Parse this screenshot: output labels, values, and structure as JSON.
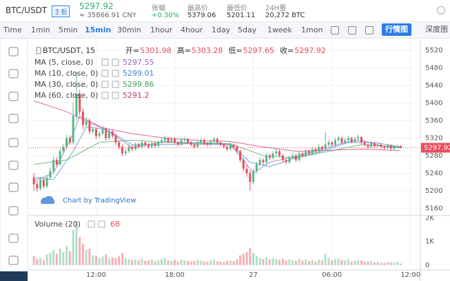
{
  "header": {
    "symbol": "BTC/USDT",
    "board": "主板",
    "price": "5297.92",
    "cny": "≈ 35866.91 CNY",
    "stats": [
      {
        "label": "张幅",
        "value": "+0.30%"
      },
      {
        "label": "最高价",
        "value": "5379.06"
      },
      {
        "label": "最低价",
        "value": "5201.11"
      },
      {
        "label": "24H量",
        "value": "20,272 BTC"
      }
    ]
  },
  "toolbar": {
    "intervals": [
      "Time",
      "1min",
      "5min",
      "15min",
      "30min",
      "1hour",
      "4hour",
      "1day",
      "5day",
      "1week",
      "1mon"
    ],
    "active": "15min",
    "views": [
      "行情图",
      "深度图"
    ]
  },
  "chart_data": {
    "type": "candlestick",
    "legend_title": "BTC/USDT, 15",
    "ohlc_labels": [
      "开=",
      "高=",
      "低=",
      "收="
    ],
    "watermark": "Chart by TradingView",
    "up_color": "#53b987",
    "down_color": "#eb4d5c",
    "candles": [
      [
        5230,
        5240,
        5200,
        5215
      ],
      [
        5215,
        5222,
        5198,
        5205
      ],
      [
        5205,
        5232,
        5200,
        5225
      ],
      [
        5225,
        5230,
        5205,
        5210
      ],
      [
        5210,
        5236,
        5206,
        5230
      ],
      [
        5230,
        5252,
        5225,
        5245
      ],
      [
        5245,
        5278,
        5240,
        5270
      ],
      [
        5270,
        5276,
        5255,
        5260
      ],
      [
        5260,
        5296,
        5256,
        5290
      ],
      [
        5290,
        5306,
        5284,
        5300
      ],
      [
        5300,
        5328,
        5295,
        5320
      ],
      [
        5320,
        5326,
        5304,
        5310
      ],
      [
        5310,
        5400,
        5305,
        5370
      ],
      [
        5370,
        5470,
        5360,
        5420
      ],
      [
        5420,
        5430,
        5372,
        5380
      ],
      [
        5380,
        5388,
        5340,
        5350
      ],
      [
        5350,
        5368,
        5344,
        5360
      ],
      [
        5360,
        5365,
        5328,
        5335
      ],
      [
        5335,
        5346,
        5330,
        5340
      ],
      [
        5340,
        5344,
        5318,
        5325
      ],
      [
        5325,
        5336,
        5320,
        5330
      ],
      [
        5330,
        5348,
        5326,
        5340
      ],
      [
        5340,
        5344,
        5314,
        5320
      ],
      [
        5320,
        5340,
        5316,
        5335
      ],
      [
        5335,
        5338,
        5320,
        5325
      ],
      [
        5325,
        5330,
        5304,
        5310
      ],
      [
        5310,
        5315,
        5294,
        5300
      ],
      [
        5300,
        5305,
        5278,
        5285
      ],
      [
        5285,
        5296,
        5280,
        5290
      ],
      [
        5290,
        5306,
        5286,
        5300
      ],
      [
        5300,
        5304,
        5290,
        5295
      ],
      [
        5295,
        5310,
        5291,
        5305
      ],
      [
        5305,
        5309,
        5296,
        5300
      ],
      [
        5300,
        5315,
        5297,
        5310
      ],
      [
        5310,
        5313,
        5300,
        5305
      ],
      [
        5305,
        5309,
        5296,
        5300
      ],
      [
        5300,
        5313,
        5297,
        5308
      ],
      [
        5308,
        5311,
        5298,
        5302
      ],
      [
        5302,
        5315,
        5299,
        5310
      ],
      [
        5310,
        5320,
        5306,
        5315
      ],
      [
        5315,
        5326,
        5311,
        5320
      ],
      [
        5320,
        5323,
        5308,
        5312
      ],
      [
        5312,
        5322,
        5309,
        5318
      ],
      [
        5318,
        5321,
        5306,
        5310
      ],
      [
        5310,
        5314,
        5301,
        5305
      ],
      [
        5305,
        5320,
        5302,
        5315
      ],
      [
        5315,
        5322,
        5311,
        5318
      ],
      [
        5318,
        5320,
        5306,
        5310
      ],
      [
        5310,
        5313,
        5301,
        5305
      ],
      [
        5305,
        5308,
        5296,
        5300
      ],
      [
        5300,
        5314,
        5297,
        5310
      ],
      [
        5310,
        5319,
        5306,
        5315
      ],
      [
        5315,
        5318,
        5304,
        5308
      ],
      [
        5308,
        5311,
        5301,
        5305
      ],
      [
        5305,
        5316,
        5302,
        5312
      ],
      [
        5312,
        5322,
        5309,
        5318
      ],
      [
        5318,
        5321,
        5306,
        5310
      ],
      [
        5310,
        5313,
        5301,
        5305
      ],
      [
        5305,
        5308,
        5296,
        5300
      ],
      [
        5300,
        5304,
        5290,
        5295
      ],
      [
        5295,
        5310,
        5291,
        5305
      ],
      [
        5305,
        5308,
        5296,
        5300
      ],
      [
        5300,
        5304,
        5285,
        5290
      ],
      [
        5290,
        5294,
        5265,
        5270
      ],
      [
        5270,
        5275,
        5244,
        5250
      ],
      [
        5250,
        5258,
        5232,
        5240
      ],
      [
        5240,
        5246,
        5200,
        5220
      ],
      [
        5220,
        5250,
        5215,
        5245
      ],
      [
        5245,
        5266,
        5240,
        5260
      ],
      [
        5260,
        5276,
        5255,
        5270
      ],
      [
        5270,
        5274,
        5258,
        5265
      ],
      [
        5265,
        5286,
        5261,
        5280
      ],
      [
        5280,
        5284,
        5270,
        5275
      ],
      [
        5275,
        5290,
        5271,
        5285
      ],
      [
        5285,
        5296,
        5281,
        5290
      ],
      [
        5290,
        5294,
        5276,
        5280
      ],
      [
        5280,
        5284,
        5265,
        5270
      ],
      [
        5270,
        5274,
        5260,
        5265
      ],
      [
        5265,
        5280,
        5261,
        5275
      ],
      [
        5275,
        5286,
        5271,
        5280
      ],
      [
        5280,
        5284,
        5266,
        5270
      ],
      [
        5270,
        5290,
        5266,
        5285
      ],
      [
        5285,
        5288,
        5276,
        5280
      ],
      [
        5280,
        5295,
        5276,
        5290
      ],
      [
        5290,
        5293,
        5281,
        5285
      ],
      [
        5285,
        5300,
        5281,
        5295
      ],
      [
        5295,
        5298,
        5286,
        5290
      ],
      [
        5290,
        5306,
        5286,
        5300
      ],
      [
        5300,
        5303,
        5291,
        5295
      ],
      [
        5295,
        5334,
        5291,
        5305
      ],
      [
        5305,
        5316,
        5301,
        5310
      ],
      [
        5310,
        5313,
        5300,
        5305
      ],
      [
        5305,
        5320,
        5301,
        5315
      ],
      [
        5315,
        5326,
        5311,
        5320
      ],
      [
        5320,
        5323,
        5306,
        5310
      ],
      [
        5310,
        5320,
        5306,
        5315
      ],
      [
        5315,
        5324,
        5311,
        5320
      ],
      [
        5320,
        5323,
        5308,
        5312
      ],
      [
        5312,
        5322,
        5309,
        5318
      ],
      [
        5318,
        5328,
        5314,
        5322
      ],
      [
        5322,
        5325,
        5306,
        5310
      ],
      [
        5310,
        5313,
        5301,
        5305
      ],
      [
        5305,
        5308,
        5296,
        5300
      ],
      [
        5300,
        5312,
        5297,
        5308
      ],
      [
        5308,
        5311,
        5298,
        5302
      ],
      [
        5302,
        5309,
        5299,
        5305
      ],
      [
        5305,
        5308,
        5296,
        5300
      ],
      [
        5300,
        5303,
        5294,
        5298
      ],
      [
        5298,
        5307,
        5295,
        5303
      ],
      [
        5303,
        5306,
        5292,
        5296
      ],
      [
        5296,
        5304,
        5293,
        5300
      ],
      [
        5300,
        5305,
        5297,
        5301.98
      ],
      [
        5301.98,
        5303.28,
        5297.65,
        5297.92
      ]
    ],
    "series": [
      {
        "name": "MA (5, close, 0)",
        "color": "#9a5fc7",
        "x": [
          0,
          6,
          12,
          14,
          18,
          24,
          30,
          40,
          50,
          60,
          64,
          67,
          72,
          80,
          88,
          95,
          100,
          106,
          112
        ],
        "values": [
          5222,
          5240,
          5330,
          5370,
          5355,
          5330,
          5298,
          5312,
          5306,
          5305,
          5270,
          5240,
          5265,
          5278,
          5295,
          5310,
          5315,
          5302,
          5297.55
        ]
      },
      {
        "name": "MA (10, close, 0)",
        "color": "#3d85d6",
        "x": [
          0,
          6,
          12,
          16,
          22,
          30,
          40,
          50,
          60,
          66,
          72,
          80,
          88,
          96,
          104,
          112
        ],
        "values": [
          5230,
          5225,
          5290,
          5345,
          5340,
          5305,
          5305,
          5308,
          5306,
          5265,
          5255,
          5275,
          5290,
          5310,
          5310,
          5299.01
        ]
      },
      {
        "name": "MA (30, close, 0)",
        "color": "#3fa65a",
        "x": [
          0,
          10,
          20,
          30,
          40,
          50,
          60,
          70,
          80,
          90,
          100,
          112
        ],
        "values": [
          5260,
          5270,
          5310,
          5315,
          5310,
          5310,
          5307,
          5280,
          5275,
          5290,
          5305,
          5299.86
        ]
      },
      {
        "name": "MA (60, close, 0)",
        "color": "#c2367f",
        "x": [
          0,
          10,
          20,
          30,
          40,
          50,
          60,
          70,
          80,
          90,
          100,
          112
        ],
        "values": [
          5405,
          5380,
          5345,
          5330,
          5320,
          5315,
          5312,
          5300,
          5290,
          5292,
          5295,
          5291.2
        ]
      }
    ],
    "ylim": [
      5145,
      5545
    ],
    "yticks": [
      5160,
      5200,
      5240,
      5280,
      5320,
      5360,
      5400,
      5440,
      5480,
      5520
    ],
    "xlim": [
      -1.5,
      118
    ],
    "xticks": [
      {
        "value": 19,
        "label": "12:00"
      },
      {
        "value": 43,
        "label": "18:00"
      },
      {
        "value": 67,
        "label": "27"
      },
      {
        "value": 91,
        "label": "06:00"
      },
      {
        "value": 115,
        "label": "12:00"
      }
    ],
    "volume_title": "Volume (20)",
    "volumes": [
      380,
      260,
      310,
      220,
      450,
      520,
      640,
      480,
      700,
      560,
      820,
      600,
      1500,
      1850,
      1200,
      900,
      650,
      700,
      420,
      380,
      300,
      360,
      450,
      280,
      330,
      300,
      380,
      520,
      300,
      260,
      220,
      240,
      200,
      260,
      180,
      200,
      240,
      160,
      220,
      280,
      300,
      200,
      180,
      220,
      160,
      240,
      200,
      180,
      150,
      170,
      220,
      180,
      160,
      140,
      200,
      240,
      160,
      150,
      130,
      180,
      200,
      160,
      240,
      420,
      480,
      560,
      720,
      520,
      380,
      300,
      260,
      340,
      240,
      300,
      260,
      220,
      280,
      200,
      240,
      220,
      180,
      260,
      200,
      240,
      180,
      220,
      160,
      240,
      200,
      480,
      300,
      200,
      260,
      280,
      220,
      200,
      240,
      160,
      180,
      220,
      200,
      150,
      160,
      180,
      120,
      140,
      110,
      100,
      130,
      120,
      110,
      140,
      68
    ],
    "volume_ylim": [
      0,
      2100
    ],
    "volume_yticks": [
      0,
      {
        "value": 1000,
        "label": "1K"
      },
      {
        "value": 2000,
        "label": "2K"
      }
    ],
    "grid": true
  }
}
